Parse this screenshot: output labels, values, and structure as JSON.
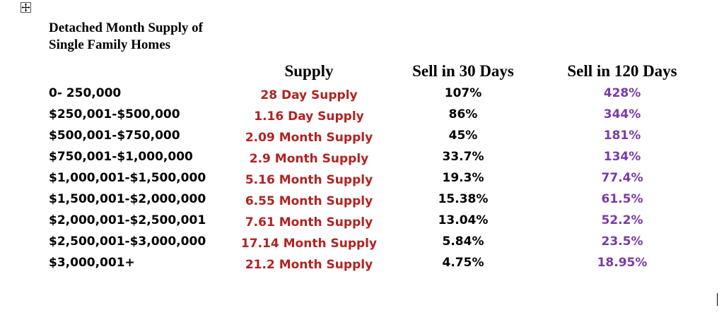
{
  "title_line1": "Detached Month Supply of",
  "title_line2": "Single Family Homes",
  "headers": {
    "supply": "Supply",
    "sell30": "Sell in 30 Days",
    "sell120": "Sell in 120 Days"
  },
  "colors": {
    "supply_text": "#b22222",
    "sell120_text": "#7a3aa8",
    "range_text": "#000000"
  },
  "icons": {
    "move_handle": "move-icon"
  },
  "rows": [
    {
      "range": "0- 250,000",
      "supply": "28 Day Supply",
      "sell30": "107%",
      "sell120": "428%"
    },
    {
      "range": "$250,001-$500,000",
      "supply": "1.16 Day Supply",
      "sell30": "86%",
      "sell120": "344%"
    },
    {
      "range": "$500,001-$750,000",
      "supply": "2.09 Month Supply",
      "sell30": "45%",
      "sell120": "181%"
    },
    {
      "range": "$750,001-$1,000,000",
      "supply": "2.9 Month Supply",
      "sell30": "33.7%",
      "sell120": "134%"
    },
    {
      "range": "$1,000,001-$1,500,000",
      "supply": "5.16 Month Supply",
      "sell30": "19.3%",
      "sell120": "77.4%"
    },
    {
      "range": "$1,500,001-$2,000,000",
      "supply": "6.55 Month Supply",
      "sell30": "15.38%",
      "sell120": "61.5%"
    },
    {
      "range": "$2,000,001-$2,500,001",
      "supply": "7.61 Month Supply",
      "sell30": "13.04%",
      "sell120": "52.2%"
    },
    {
      "range": "$2,500,001-$3,000,000",
      "supply": "17.14 Month Supply",
      "sell30": "5.84%",
      "sell120": "23.5%"
    },
    {
      "range": "$3,000,001+",
      "supply": "21.2 Month Supply",
      "sell30": "4.75%",
      "sell120": "18.95%"
    }
  ]
}
